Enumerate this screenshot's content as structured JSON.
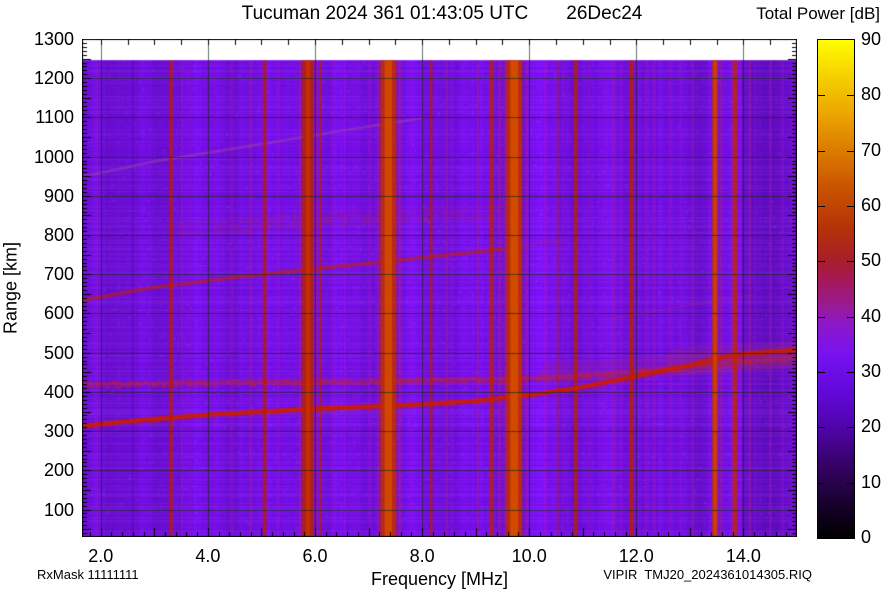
{
  "header": {
    "title": "Tucuman 2024 361 01:43:05 UTC",
    "date": "26Dec24",
    "colorbar_title": "Total Power [dB]"
  },
  "footer": {
    "rx_mask": "RxMask 11111111",
    "file_id": "VIPIR  TMJ20_2024361014305.RIQ"
  },
  "chart_data": {
    "type": "heatmap",
    "title": "Tucuman 2024 361 01:43:05 UTC   26Dec24",
    "xlabel": "Frequency [MHz]",
    "ylabel": "Range [km]",
    "xlim": [
      1.65,
      15.0
    ],
    "ylim": [
      30,
      1300
    ],
    "data_top_km": 1246,
    "x_tick_values": [
      2.0,
      4.0,
      6.0,
      8.0,
      10.0,
      12.0,
      14.0
    ],
    "x_tick_labels": [
      "2.0",
      "4.0",
      "6.0",
      "8.0",
      "10.0",
      "12.0",
      "14.0"
    ],
    "y_tick_values": [
      100,
      200,
      300,
      400,
      500,
      600,
      700,
      800,
      900,
      1000,
      1100,
      1200,
      1300
    ],
    "y_tick_labels": [
      "100",
      "200",
      "300",
      "400",
      "500",
      "600",
      "700",
      "800",
      "900",
      "1000",
      "1100",
      "1200",
      "1300"
    ],
    "grid": {
      "x_start": 2,
      "x_step": 2,
      "y_start": 100,
      "y_step": 100
    },
    "ticks": {
      "x_minor": 0.2,
      "x_major": 1.0,
      "top_step": 0.5,
      "y_minor": 10,
      "y_major": 50
    },
    "background_color": "#7a10f0",
    "grid_color": "rgba(20,40,20,0.65)",
    "colorbar": {
      "min": 0,
      "max": 90,
      "tick_values": [
        0,
        10,
        20,
        30,
        40,
        50,
        60,
        70,
        80,
        90
      ],
      "tick_labels": [
        "0",
        "10",
        "20",
        "30",
        "40",
        "50",
        "60",
        "70",
        "80",
        "90"
      ],
      "stops": [
        [
          0.0,
          "#000000"
        ],
        [
          0.07,
          "#19012f"
        ],
        [
          0.14,
          "#33025f"
        ],
        [
          0.22,
          "#4f04a8"
        ],
        [
          0.3,
          "#6309dd"
        ],
        [
          0.37,
          "#7812f0"
        ],
        [
          0.43,
          "#8d18c8"
        ],
        [
          0.47,
          "#9a1a90"
        ],
        [
          0.52,
          "#a41955"
        ],
        [
          0.56,
          "#a81f28"
        ],
        [
          0.62,
          "#b53208"
        ],
        [
          0.7,
          "#c85200"
        ],
        [
          0.78,
          "#dc7c00"
        ],
        [
          0.86,
          "#edaa00"
        ],
        [
          0.94,
          "#f8d800"
        ],
        [
          1.0,
          "#ffff00"
        ]
      ]
    },
    "tint_regions": [
      [
        1.65,
        1.85,
        0.94
      ],
      [
        2.1,
        3.28,
        0.93
      ],
      [
        4.05,
        4.55,
        0.97
      ],
      [
        9.95,
        10.55,
        1.04
      ],
      [
        10.95,
        11.25,
        0.97
      ],
      [
        12.35,
        13.35,
        0.97
      ],
      [
        13.95,
        15.0,
        0.88
      ]
    ],
    "soft_stripes": [
      [
        1.92,
        0.05,
        "#a316c8",
        0.35
      ],
      [
        2.6,
        0.04,
        "#5a0ab4",
        0.5
      ],
      [
        3.52,
        0.05,
        "#a316c8",
        0.4
      ],
      [
        3.67,
        0.04,
        "#a316c8",
        0.3
      ],
      [
        4.12,
        0.05,
        "#8a12d8",
        0.3
      ],
      [
        4.45,
        0.07,
        "#a316c8",
        0.3
      ],
      [
        4.8,
        0.05,
        "#a82098",
        0.45
      ],
      [
        5.31,
        0.05,
        "#a316c8",
        0.35
      ],
      [
        5.72,
        0.05,
        "#aa1c9a",
        0.5
      ],
      [
        6.03,
        0.03,
        "#b02060",
        0.5
      ],
      [
        6.36,
        0.04,
        "#a316c8",
        0.4
      ],
      [
        6.56,
        0.04,
        "#a316c8",
        0.35
      ],
      [
        6.74,
        0.04,
        "#9a14d0",
        0.3
      ],
      [
        7.02,
        0.05,
        "#a316c8",
        0.35
      ],
      [
        7.18,
        0.05,
        "#b02078",
        0.5
      ],
      [
        7.58,
        0.05,
        "#b02078",
        0.5
      ],
      [
        7.8,
        0.04,
        "#a316c8",
        0.3
      ],
      [
        8.0,
        0.04,
        "#9a14d0",
        0.3
      ],
      [
        8.46,
        0.05,
        "#a82098",
        0.45
      ],
      [
        8.55,
        0.03,
        "#a316c8",
        0.3
      ],
      [
        9.04,
        0.05,
        "#a82098",
        0.4
      ],
      [
        9.45,
        0.06,
        "#aa1c9a",
        0.5
      ],
      [
        9.55,
        0.04,
        "#b02078",
        0.45
      ],
      [
        9.95,
        0.05,
        "#b02078",
        0.4
      ],
      [
        10.3,
        0.06,
        "#a316c8",
        0.4
      ],
      [
        10.62,
        0.04,
        "#a316c8",
        0.3
      ],
      [
        11.12,
        0.05,
        "#a316c8",
        0.3
      ],
      [
        11.42,
        0.04,
        "#a316c8",
        0.3
      ],
      [
        11.58,
        0.05,
        "#a82098",
        0.45
      ],
      [
        11.72,
        0.04,
        "#a316c8",
        0.35
      ],
      [
        12.18,
        0.05,
        "#a316c8",
        0.4
      ],
      [
        12.34,
        0.04,
        "#a82098",
        0.35
      ],
      [
        12.63,
        0.05,
        "#a316c8",
        0.35
      ],
      [
        12.83,
        0.04,
        "#a316c8",
        0.3
      ],
      [
        13.06,
        0.04,
        "#a82098",
        0.35
      ],
      [
        13.58,
        0.05,
        "#b02078",
        0.45
      ],
      [
        13.95,
        0.04,
        "#a316c8",
        0.35
      ],
      [
        14.12,
        0.05,
        "#a82098",
        0.45
      ],
      [
        14.22,
        0.04,
        "#8a12d8",
        0.35
      ],
      [
        14.5,
        0.05,
        "#a316c8",
        0.4
      ],
      [
        14.73,
        0.05,
        "#9a14d0",
        0.35
      ],
      [
        14.92,
        0.05,
        "#a316c8",
        0.4
      ]
    ],
    "rfi_bands": [
      [
        3.31,
        0.07,
        "#b81c00",
        0.8
      ],
      [
        5.06,
        0.07,
        "#b81c00",
        0.8
      ],
      [
        5.87,
        0.22,
        "#b82200",
        0.85,
        0.08,
        "#c53000"
      ],
      [
        6.1,
        0.05,
        "#b42200",
        0.7
      ],
      [
        7.37,
        0.3,
        "#c02c00",
        0.88,
        0.14,
        "#d14800"
      ],
      [
        8.17,
        0.05,
        "#b42000",
        0.7
      ],
      [
        9.3,
        0.08,
        "#b82200",
        0.8
      ],
      [
        9.72,
        0.3,
        "#c02e00",
        0.9,
        0.15,
        "#d14a00"
      ],
      [
        10.53,
        0.04,
        "#a41c20",
        0.5
      ],
      [
        10.87,
        0.07,
        "#b82000",
        0.8
      ],
      [
        11.91,
        0.09,
        "#b81e00",
        0.8
      ],
      [
        13.47,
        0.11,
        "#c33200",
        0.85,
        0.05,
        "#cf4200"
      ],
      [
        13.84,
        0.09,
        "#bf2600",
        0.82
      ]
    ],
    "traces": [
      {
        "name": "f-region-halo-outer",
        "points": [
          [
            12.8,
            478
          ],
          [
            15,
            495
          ]
        ],
        "width_km": 70,
        "color": "#b03060",
        "alpha": 0.18
      },
      {
        "name": "f-region-halo",
        "points": [
          [
            10.4,
            448
          ],
          [
            12,
            460
          ],
          [
            13.2,
            474
          ],
          [
            15,
            492
          ]
        ],
        "width_km": 55,
        "color": "#a62a78",
        "alpha": 0.22
      },
      {
        "name": "spread-band-850km",
        "points": [
          [
            3.2,
            815
          ],
          [
            5,
            832
          ],
          [
            7,
            848
          ],
          [
            9.6,
            864
          ]
        ],
        "width_km": 40,
        "color": "#b82840",
        "alpha": 0.3,
        "speckle": true,
        "density": 0.9
      },
      {
        "name": "band-420km-base",
        "points": [
          [
            1.65,
            420
          ],
          [
            4,
            425
          ],
          [
            7,
            428
          ],
          [
            9.5,
            433
          ],
          [
            11,
            442
          ],
          [
            12,
            453
          ],
          [
            13,
            466
          ],
          [
            14,
            479
          ],
          [
            15,
            489
          ]
        ],
        "width_km": 10,
        "color": "#bb2a50",
        "alpha": 0.25
      },
      {
        "name": "band-420km-speckle",
        "points": [
          [
            1.65,
            420
          ],
          [
            4,
            425
          ],
          [
            7,
            428
          ],
          [
            9.5,
            433
          ],
          [
            11,
            442
          ],
          [
            12,
            453
          ],
          [
            13,
            466
          ],
          [
            14,
            479
          ],
          [
            15,
            489
          ]
        ],
        "width_km": 16,
        "color": "#c22430",
        "alpha": 0.5,
        "speckle": true,
        "density": 2.2
      },
      {
        "name": "second-hop-trace",
        "points": [
          [
            1.65,
            634
          ],
          [
            3,
            667
          ],
          [
            5,
            700
          ],
          [
            7,
            728
          ],
          [
            8.5,
            750
          ],
          [
            9.5,
            764
          ]
        ],
        "width_km": 9,
        "color": "#c02200",
        "alpha": 0.6
      },
      {
        "name": "second-hop-fade",
        "points": [
          [
            9.5,
            764
          ],
          [
            10.6,
            787
          ]
        ],
        "width_km": 7,
        "color": "#b02858",
        "alpha": 0.25
      },
      {
        "name": "third-hop-trace",
        "points": [
          [
            1.65,
            948
          ],
          [
            3,
            988
          ],
          [
            5,
            1032
          ],
          [
            6.5,
            1066
          ],
          [
            8,
            1098
          ]
        ],
        "width_km": 7,
        "color": "#b05890",
        "alpha": 0.35
      },
      {
        "name": "faint-diag-right",
        "points": [
          [
            11.4,
            585
          ],
          [
            14.2,
            648
          ]
        ],
        "width_km": 6,
        "color": "#b03060",
        "alpha": 0.2
      },
      {
        "name": "main-echo-trace",
        "points": [
          [
            1.65,
            313
          ],
          [
            2.5,
            325
          ],
          [
            4,
            342
          ],
          [
            6,
            357
          ],
          [
            8,
            368
          ],
          [
            9,
            377
          ],
          [
            10,
            392
          ],
          [
            11,
            413
          ],
          [
            12,
            440
          ],
          [
            13,
            468
          ],
          [
            13.5,
            486
          ],
          [
            14,
            496
          ],
          [
            15,
            507
          ]
        ],
        "width_km": 11,
        "color": "#cb1c00",
        "alpha": 0.92
      },
      {
        "name": "main-echo-speckle",
        "points": [
          [
            1.65,
            313
          ],
          [
            2.5,
            325
          ],
          [
            4,
            342
          ],
          [
            6,
            357
          ],
          [
            8,
            368
          ],
          [
            9,
            377
          ],
          [
            10,
            392
          ],
          [
            11,
            413
          ],
          [
            12,
            440
          ],
          [
            13,
            468
          ],
          [
            13.5,
            486
          ],
          [
            14,
            496
          ],
          [
            15,
            507
          ]
        ],
        "width_km": 18,
        "color": "#c42818",
        "alpha": 0.3,
        "speckle": true,
        "density": 1.2
      }
    ]
  }
}
